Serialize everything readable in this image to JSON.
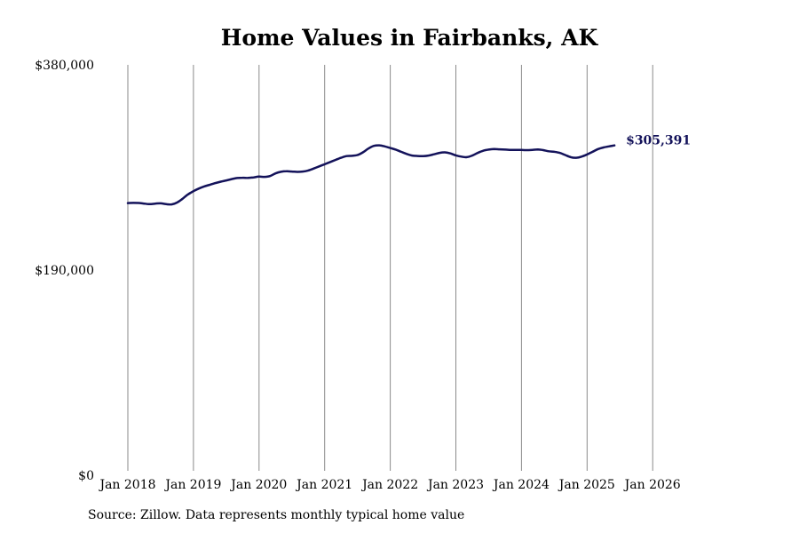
{
  "chart_data": {
    "type": "line",
    "title": "Home Values in Fairbanks, AK",
    "xlabel": "",
    "ylabel": "",
    "ylim": [
      0,
      380000
    ],
    "yticks": [
      {
        "value": 0,
        "label": "$0"
      },
      {
        "value": 190000,
        "label": "$190,000"
      },
      {
        "value": 380000,
        "label": "$380,000"
      }
    ],
    "xticks": [
      {
        "value": "2018-01",
        "label": "Jan 2018"
      },
      {
        "value": "2019-01",
        "label": "Jan 2019"
      },
      {
        "value": "2020-01",
        "label": "Jan 2020"
      },
      {
        "value": "2021-01",
        "label": "Jan 2021"
      },
      {
        "value": "2022-01",
        "label": "Jan 2022"
      },
      {
        "value": "2023-01",
        "label": "Jan 2023"
      },
      {
        "value": "2024-01",
        "label": "Jan 2024"
      },
      {
        "value": "2025-01",
        "label": "Jan 2025"
      },
      {
        "value": "2026-01",
        "label": "Jan 2026"
      }
    ],
    "grid": "vertical",
    "line_color": "#13125a",
    "series": [
      {
        "points": [
          [
            "2018-01",
            252000
          ],
          [
            "2018-02",
            252200
          ],
          [
            "2018-03",
            252100
          ],
          [
            "2018-04",
            251500
          ],
          [
            "2018-05",
            251000
          ],
          [
            "2018-06",
            251500
          ],
          [
            "2018-07",
            251800
          ],
          [
            "2018-08",
            251000
          ],
          [
            "2018-09",
            250800
          ],
          [
            "2018-10",
            252500
          ],
          [
            "2018-11",
            256000
          ],
          [
            "2018-12",
            260000
          ],
          [
            "2019-01",
            263000
          ],
          [
            "2019-02",
            265500
          ],
          [
            "2019-03",
            267500
          ],
          [
            "2019-04",
            269000
          ],
          [
            "2019-05",
            270500
          ],
          [
            "2019-06",
            271800
          ],
          [
            "2019-07",
            273000
          ],
          [
            "2019-08",
            274200
          ],
          [
            "2019-09",
            275200
          ],
          [
            "2019-10",
            275500
          ],
          [
            "2019-11",
            275300
          ],
          [
            "2019-12",
            275800
          ],
          [
            "2020-01",
            276500
          ],
          [
            "2020-02",
            276300
          ],
          [
            "2020-03",
            277000
          ],
          [
            "2020-04",
            279500
          ],
          [
            "2020-05",
            281000
          ],
          [
            "2020-06",
            281500
          ],
          [
            "2020-07",
            281200
          ],
          [
            "2020-08",
            280900
          ],
          [
            "2020-09",
            281200
          ],
          [
            "2020-10",
            282200
          ],
          [
            "2020-11",
            284000
          ],
          [
            "2020-12",
            286000
          ],
          [
            "2021-01",
            288000
          ],
          [
            "2021-02",
            290000
          ],
          [
            "2021-03",
            292000
          ],
          [
            "2021-04",
            294000
          ],
          [
            "2021-05",
            295500
          ],
          [
            "2021-06",
            295800
          ],
          [
            "2021-07",
            296500
          ],
          [
            "2021-08",
            299000
          ],
          [
            "2021-09",
            302500
          ],
          [
            "2021-10",
            305000
          ],
          [
            "2021-11",
            305500
          ],
          [
            "2021-12",
            304500
          ],
          [
            "2022-01",
            303000
          ],
          [
            "2022-02",
            301500
          ],
          [
            "2022-03",
            299500
          ],
          [
            "2022-04",
            297500
          ],
          [
            "2022-05",
            296000
          ],
          [
            "2022-06",
            295600
          ],
          [
            "2022-07",
            295500
          ],
          [
            "2022-08",
            296000
          ],
          [
            "2022-09",
            297200
          ],
          [
            "2022-10",
            298500
          ],
          [
            "2022-11",
            299000
          ],
          [
            "2022-12",
            298000
          ],
          [
            "2023-01",
            296200
          ],
          [
            "2023-02",
            295000
          ],
          [
            "2023-03",
            294500
          ],
          [
            "2023-04",
            296000
          ],
          [
            "2023-05",
            298500
          ],
          [
            "2023-06",
            300500
          ],
          [
            "2023-07",
            301500
          ],
          [
            "2023-08",
            302000
          ],
          [
            "2023-09",
            301800
          ],
          [
            "2023-10",
            301500
          ],
          [
            "2023-11",
            301200
          ],
          [
            "2023-12",
            301300
          ],
          [
            "2024-01",
            301200
          ],
          [
            "2024-02",
            301000
          ],
          [
            "2024-03",
            301300
          ],
          [
            "2024-04",
            301600
          ],
          [
            "2024-05",
            301000
          ],
          [
            "2024-06",
            300000
          ],
          [
            "2024-07",
            299500
          ],
          [
            "2024-08",
            298500
          ],
          [
            "2024-09",
            296500
          ],
          [
            "2024-10",
            294500
          ],
          [
            "2024-11",
            294000
          ],
          [
            "2024-12",
            295000
          ],
          [
            "2025-01",
            297000
          ],
          [
            "2025-02",
            299500
          ],
          [
            "2025-03",
            302000
          ],
          [
            "2025-04",
            303500
          ],
          [
            "2025-05",
            304500
          ],
          [
            "2025-06",
            305391
          ]
        ]
      }
    ],
    "end_label": "$305,391",
    "note": "Source: Zillow. Data represents monthly typical home value"
  }
}
